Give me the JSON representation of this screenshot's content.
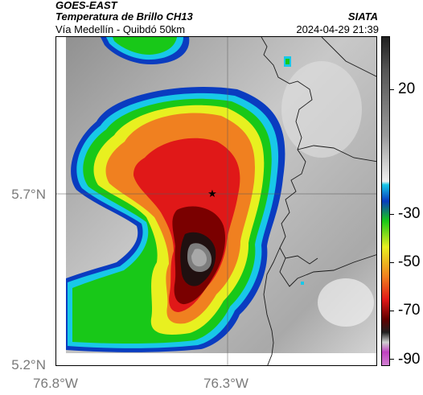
{
  "header": {
    "satellite": "GOES-EAST",
    "product": "Temperatura de Brillo CH13",
    "area": "Vía Medellín - Quibdó 50km",
    "organization": "SIATA",
    "datetime": "2024-04-29 21:39"
  },
  "axes": {
    "lat_labels": [
      "5.7°N",
      "5.2°N"
    ],
    "lon_labels": [
      "76.8°W",
      "76.3°W"
    ]
  },
  "colorbar": {
    "labels": [
      "20",
      "-30",
      "-50",
      "-70",
      "-90"
    ]
  },
  "map": {
    "marker": "star-icon",
    "colors": {
      "background_gray": "#b7b7b7",
      "storm_edge_blue": "#0a3cc0",
      "cyan": "#18c8e8",
      "green": "#18c818",
      "yellow": "#e8f020",
      "orange": "#f08020",
      "red": "#e01818",
      "dark_red": "#600000",
      "core": "#7a7a7a"
    }
  }
}
